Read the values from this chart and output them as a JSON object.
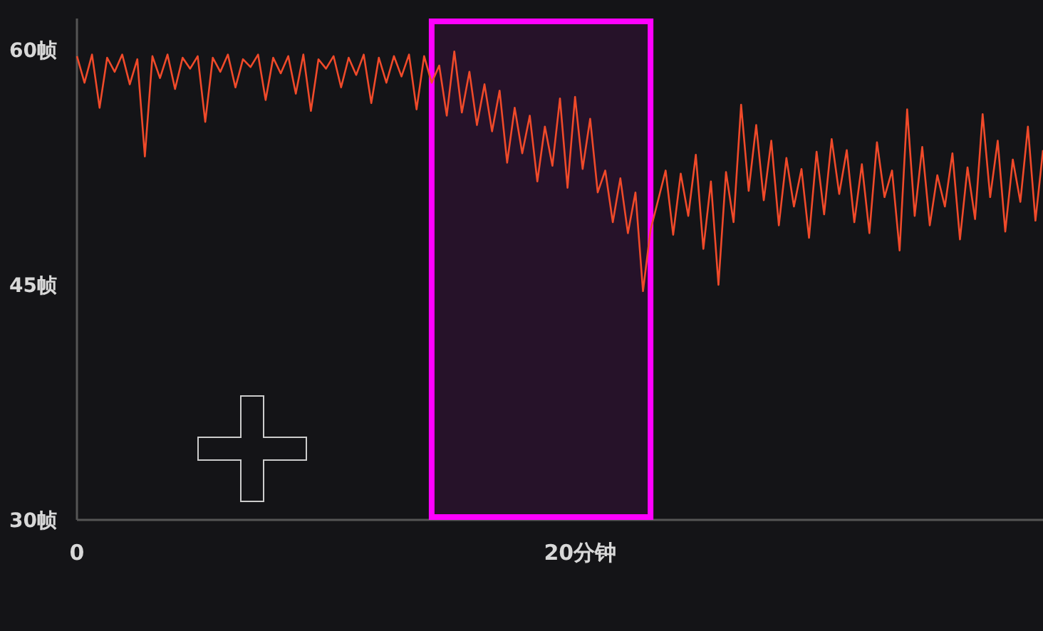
{
  "chart_data": {
    "type": "line",
    "xlim": [
      0,
      38.4
    ],
    "ylim": [
      30,
      62
    ],
    "xticks": [
      0,
      {
        "value": 20,
        "label": "20分钟"
      }
    ],
    "yticks": [
      {
        "value": 30,
        "label": "30帧"
      },
      {
        "value": 45,
        "label": "45帧"
      },
      {
        "value": 60,
        "label": "60帧"
      }
    ],
    "bands": [
      {
        "axis": "x",
        "from": 14.1,
        "to": 22.8,
        "color": "#ff00ff"
      }
    ],
    "x": [
      0,
      0.3,
      0.6,
      0.9,
      1.2,
      1.5,
      1.8,
      2.1,
      2.4,
      2.7,
      3.0,
      3.3,
      3.6,
      3.9,
      4.2,
      4.5,
      4.8,
      5.1,
      5.4,
      5.7,
      6.0,
      6.3,
      6.6,
      6.9,
      7.2,
      7.5,
      7.8,
      8.1,
      8.4,
      8.7,
      9.0,
      9.3,
      9.6,
      9.9,
      10.2,
      10.5,
      10.8,
      11.1,
      11.4,
      11.7,
      12.0,
      12.3,
      12.6,
      12.9,
      13.2,
      13.5,
      13.8,
      14.1,
      14.4,
      14.7,
      15.0,
      15.3,
      15.6,
      15.9,
      16.2,
      16.5,
      16.8,
      17.1,
      17.4,
      17.7,
      18.0,
      18.3,
      18.6,
      18.9,
      19.2,
      19.5,
      19.8,
      20.1,
      20.4,
      20.7,
      21.0,
      21.3,
      21.6,
      21.9,
      22.2,
      22.5,
      22.8,
      23.1,
      23.4,
      23.7,
      24.0,
      24.3,
      24.6,
      24.9,
      25.2,
      25.5,
      25.8,
      26.1,
      26.4,
      26.7,
      27.0,
      27.3,
      27.6,
      27.9,
      28.2,
      28.5,
      28.8,
      29.1,
      29.4,
      29.7,
      30.0,
      30.3,
      30.6,
      30.9,
      31.2,
      31.5,
      31.8,
      32.1,
      32.4,
      32.7,
      33.0,
      33.3,
      33.6,
      33.9,
      34.2,
      34.5,
      34.8,
      35.1,
      35.4,
      35.7,
      36.0,
      36.3,
      36.6,
      36.9,
      37.2,
      37.5,
      37.8,
      38.1,
      38.4
    ],
    "series": [
      {
        "color": "#f04a2a",
        "values": [
          59.6,
          57.9,
          59.7,
          56.3,
          59.5,
          58.6,
          59.7,
          57.8,
          59.4,
          53.2,
          59.6,
          58.2,
          59.7,
          57.5,
          59.5,
          58.8,
          59.6,
          55.4,
          59.5,
          58.6,
          59.7,
          57.6,
          59.4,
          58.9,
          59.7,
          56.8,
          59.5,
          58.5,
          59.6,
          57.2,
          59.7,
          56.1,
          59.4,
          58.8,
          59.6,
          57.6,
          59.5,
          58.4,
          59.7,
          56.6,
          59.5,
          57.9,
          59.6,
          58.3,
          59.7,
          56.2,
          59.6,
          57.9,
          59.0,
          55.8,
          59.9,
          56.0,
          58.6,
          55.2,
          57.8,
          54.8,
          57.4,
          52.8,
          56.3,
          53.4,
          55.8,
          51.6,
          55.1,
          52.6,
          56.9,
          51.2,
          57.0,
          52.4,
          55.6,
          50.9,
          52.3,
          49.0,
          51.8,
          48.3,
          50.9,
          44.6,
          48.5,
          50.4,
          52.3,
          48.2,
          52.1,
          49.4,
          53.3,
          47.3,
          51.6,
          45.0,
          52.2,
          49.0,
          56.5,
          51.0,
          55.2,
          50.4,
          54.2,
          48.8,
          53.1,
          50.0,
          52.4,
          48.0,
          53.5,
          49.5,
          54.3,
          50.8,
          53.6,
          49.0,
          52.7,
          48.3,
          54.1,
          50.6,
          52.3,
          47.2,
          56.2,
          49.4,
          53.8,
          48.8,
          52.0,
          50.0,
          53.4,
          47.9,
          52.5,
          49.2,
          55.9,
          50.6,
          54.2,
          48.4,
          53.0,
          50.3,
          55.1,
          49.1,
          53.6
        ]
      }
    ]
  }
}
